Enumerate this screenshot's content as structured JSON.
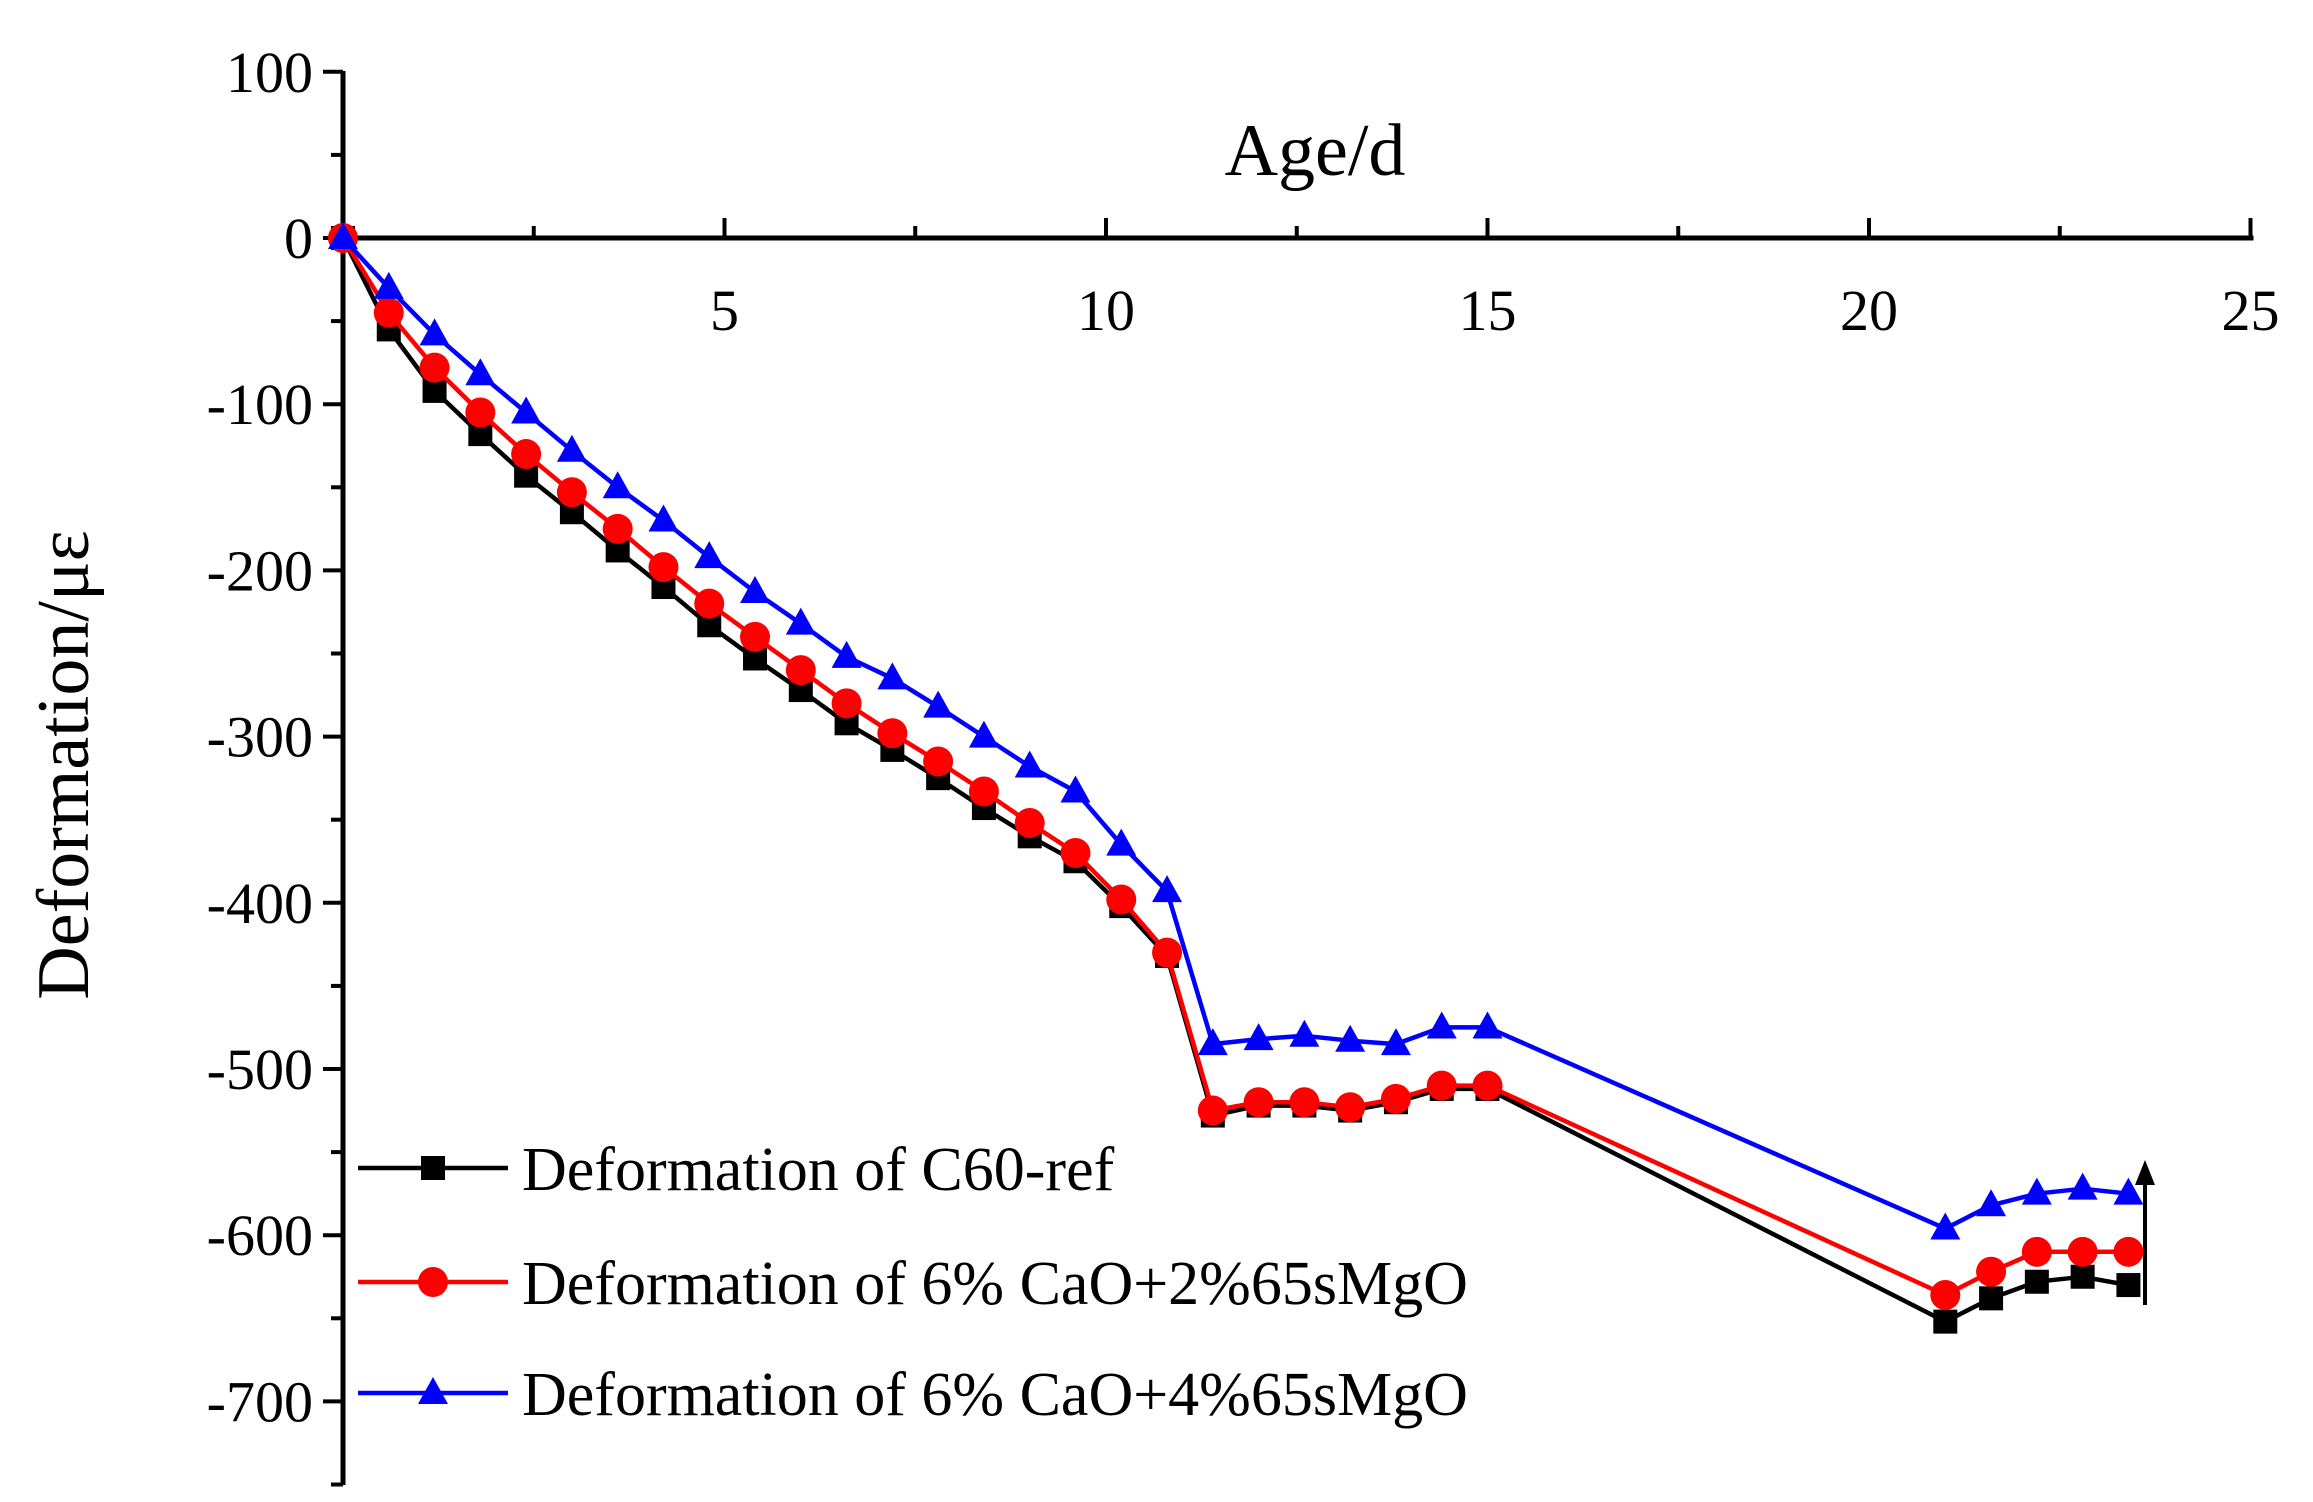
{
  "chart_data": {
    "type": "line",
    "title": "",
    "xlabel": "Age/d",
    "ylabel": "Deformation/με",
    "xlim": [
      0,
      25
    ],
    "ylim": [
      -750,
      100
    ],
    "x_ticks": [
      5,
      10,
      15,
      20,
      25
    ],
    "y_ticks": [
      100,
      0,
      -100,
      -200,
      -300,
      -400,
      -500,
      -600,
      -700
    ],
    "x_axis_position": "top, at y = 0",
    "grid": false,
    "legend_position": "bottom-left",
    "annotation": "upward arrow near x = 23.5",
    "series": [
      {
        "name": "Deformation of C60-ref",
        "color": "#000000",
        "marker": "square",
        "x": [
          0,
          0.6,
          1.2,
          1.8,
          2.4,
          3.0,
          3.6,
          4.2,
          4.8,
          5.4,
          6.0,
          6.6,
          7.2,
          7.8,
          8.4,
          9.0,
          9.6,
          10.2,
          10.8,
          11.4,
          12.0,
          12.6,
          13.2,
          13.8,
          14.4,
          15.0,
          21.0,
          21.6,
          22.2,
          22.8,
          23.4
        ],
        "y": [
          0,
          -55,
          -92,
          -118,
          -143,
          -165,
          -188,
          -210,
          -233,
          -253,
          -272,
          -292,
          -308,
          -325,
          -343,
          -360,
          -375,
          -402,
          -432,
          -528,
          -522,
          -522,
          -525,
          -520,
          -512,
          -512,
          -652,
          -638,
          -628,
          -625,
          -630
        ]
      },
      {
        "name": "Deformation of 6% CaO+2%65sMgO",
        "color": "#ff0000",
        "marker": "circle",
        "x": [
          0,
          0.6,
          1.2,
          1.8,
          2.4,
          3.0,
          3.6,
          4.2,
          4.8,
          5.4,
          6.0,
          6.6,
          7.2,
          7.8,
          8.4,
          9.0,
          9.6,
          10.2,
          10.8,
          11.4,
          12.0,
          12.6,
          13.2,
          13.8,
          14.4,
          15.0,
          21.0,
          21.6,
          22.2,
          22.8,
          23.4
        ],
        "y": [
          0,
          -45,
          -78,
          -105,
          -130,
          -153,
          -175,
          -198,
          -220,
          -240,
          -260,
          -280,
          -298,
          -315,
          -333,
          -352,
          -370,
          -398,
          -430,
          -525,
          -520,
          -520,
          -523,
          -518,
          -510,
          -510,
          -636,
          -622,
          -610,
          -610,
          -610
        ]
      },
      {
        "name": "Deformation of 6% CaO+4%65sMgO",
        "color": "#0000ff",
        "marker": "triangle",
        "x": [
          0,
          0.6,
          1.2,
          1.8,
          2.4,
          3.0,
          3.6,
          4.2,
          4.8,
          5.4,
          6.0,
          6.6,
          7.2,
          7.8,
          8.4,
          9.0,
          9.6,
          10.2,
          10.8,
          11.4,
          12.0,
          12.6,
          13.2,
          13.8,
          14.4,
          15.0,
          21.0,
          21.6,
          22.2,
          22.8,
          23.4
        ],
        "y": [
          0,
          -30,
          -58,
          -82,
          -105,
          -128,
          -150,
          -170,
          -192,
          -213,
          -232,
          -252,
          -265,
          -282,
          -300,
          -318,
          -333,
          -365,
          -393,
          -485,
          -482,
          -480,
          -483,
          -485,
          -475,
          -475,
          -596,
          -582,
          -575,
          -572,
          -575
        ]
      }
    ]
  }
}
